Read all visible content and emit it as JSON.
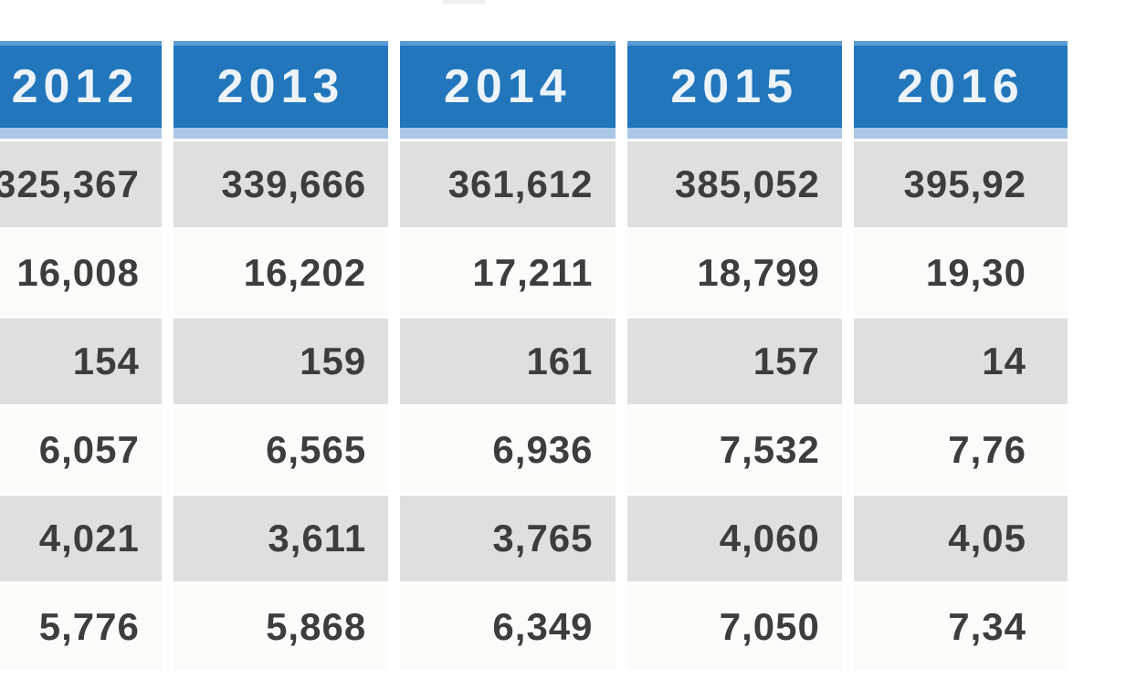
{
  "chart_data": {
    "type": "table",
    "columns": [
      "2012",
      "2013",
      "2014",
      "2015",
      "2016"
    ],
    "rows": [
      [
        "325,367",
        "339,666",
        "361,612",
        "385,052",
        "395,92"
      ],
      [
        "16,008",
        "16,202",
        "17,211",
        "18,799",
        "19,30"
      ],
      [
        "154",
        "159",
        "161",
        "157",
        "14"
      ],
      [
        "6,057",
        "6,565",
        "6,936",
        "7,532",
        "7,76"
      ],
      [
        "4,021",
        "3,611",
        "3,765",
        "4,060",
        "4,05"
      ],
      [
        "5,776",
        "5,868",
        "6,349",
        "7,050",
        "7,34"
      ]
    ]
  },
  "colors": {
    "header_background": "#2176bc",
    "header_top_edge": "#5b9ad2",
    "header_bottom_band": "#aac8e6",
    "header_text": "#ecf3fa",
    "row_alt_gray": "#e0dfdf",
    "row_white": "#fbfbfa",
    "value_text": "#3e3d3c",
    "page_background": "#ffffff"
  }
}
